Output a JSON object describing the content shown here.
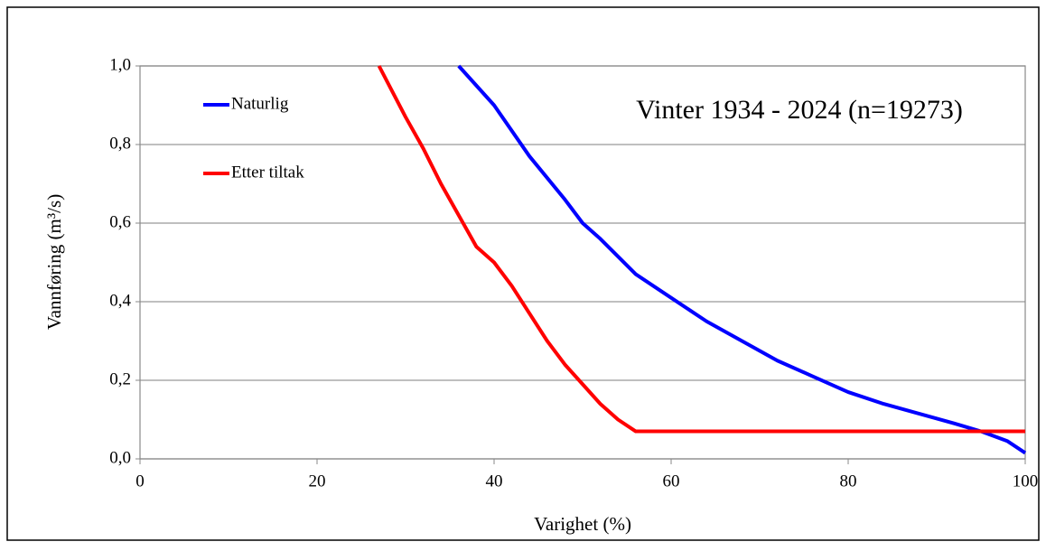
{
  "chart_data": {
    "type": "line",
    "title": "Vinter 1934 - 2024 (n=19273)",
    "x_label": "Varighet (%)",
    "y_label": "Vannføring (m³/s)",
    "xlim": [
      0,
      100
    ],
    "xticks": [
      0,
      20,
      40,
      60,
      80,
      100
    ],
    "ylim": [
      0,
      1
    ],
    "yticks": [
      {
        "value": 0,
        "label": "0,0"
      },
      {
        "value": 0.2,
        "label": "0,2"
      },
      {
        "value": 0.4,
        "label": "0,4"
      },
      {
        "value": 0.6,
        "label": "0,6"
      },
      {
        "value": 0.8,
        "label": "0,8"
      },
      {
        "value": 1,
        "label": "1,0"
      }
    ],
    "grid": true,
    "legend": "upper left",
    "series": [
      {
        "name": "Naturlig",
        "color": "#0000ff",
        "x": [
          36,
          40,
          44,
          48,
          50,
          52,
          56,
          60,
          64,
          68,
          72,
          76,
          80,
          84,
          88,
          92,
          95,
          98,
          100
        ],
        "values": [
          1.0,
          0.9,
          0.77,
          0.66,
          0.6,
          0.56,
          0.47,
          0.41,
          0.35,
          0.3,
          0.25,
          0.21,
          0.17,
          0.14,
          0.115,
          0.09,
          0.07,
          0.045,
          0.015
        ]
      },
      {
        "name": "Etter tiltak",
        "color": "#ff0000",
        "x": [
          27,
          30,
          32,
          34,
          36,
          38,
          40,
          42,
          44,
          46,
          48,
          50,
          52,
          54,
          56,
          100
        ],
        "values": [
          1.0,
          0.87,
          0.79,
          0.7,
          0.62,
          0.54,
          0.5,
          0.44,
          0.37,
          0.3,
          0.24,
          0.19,
          0.14,
          0.1,
          0.07,
          0.07
        ]
      }
    ]
  }
}
